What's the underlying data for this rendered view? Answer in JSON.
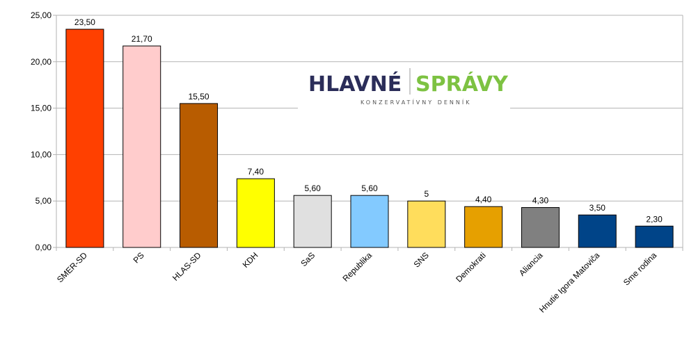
{
  "logo": {
    "part1": "HLAVNÉ",
    "part2": "SPRÁVY",
    "tagline": "KONZERVATÍVNY DENNÍK",
    "color_part1": "#2b2d59",
    "color_part2": "#7dc242"
  },
  "chart_data": {
    "type": "bar",
    "title": "",
    "xlabel": "",
    "ylabel": "",
    "ylim": [
      0,
      25
    ],
    "yticks": [
      "0,00",
      "5,00",
      "10,00",
      "15,00",
      "20,00",
      "25,00"
    ],
    "ytick_values": [
      0,
      5,
      10,
      15,
      20,
      25
    ],
    "grid": true,
    "categories": [
      "SMER-SD",
      "PS",
      "HLAS-SD",
      "KDH",
      "SaS",
      "Republika",
      "SNS",
      "Demokrati",
      "Aliancia",
      "Hnutie Igora Matoviča",
      "Sme rodina"
    ],
    "values": [
      23.5,
      21.7,
      15.5,
      7.4,
      5.6,
      5.6,
      5,
      4.4,
      4.3,
      3.5,
      2.3
    ],
    "data_labels": [
      "23,50",
      "21,70",
      "15,50",
      "7,40",
      "5,60",
      "5,60",
      "5",
      "4,40",
      "4,30",
      "3,50",
      "2,30"
    ],
    "colors": [
      "#ff4000",
      "#ffcccc",
      "#b85c00",
      "#ffff00",
      "#e0e0e0",
      "#83caff",
      "#ffdd5c",
      "#e6a000",
      "#808080",
      "#004488",
      "#004488"
    ]
  }
}
